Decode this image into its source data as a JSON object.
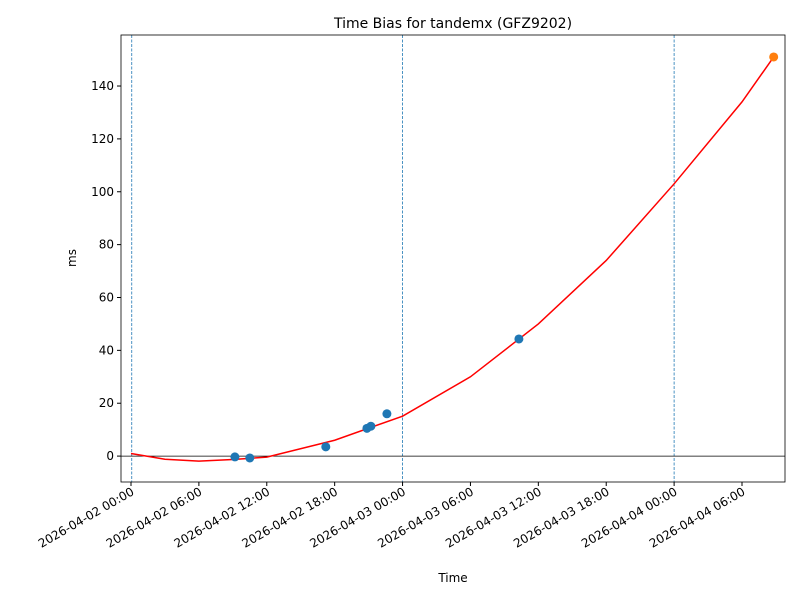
{
  "chart_data": {
    "type": "scatter",
    "title": "Time Bias for tandemx (GFZ9202)",
    "xlabel": "Time",
    "ylabel": "ms",
    "xlim": [
      "2026-04-01 23:07",
      "2026-04-04 09:48"
    ],
    "ylim": [
      -9.8,
      159.3
    ],
    "xticks": [
      "2026-04-02 00:00",
      "2026-04-02 06:00",
      "2026-04-02 12:00",
      "2026-04-02 18:00",
      "2026-04-03 00:00",
      "2026-04-03 06:00",
      "2026-04-03 12:00",
      "2026-04-03 18:00",
      "2026-04-04 00:00",
      "2026-04-04 06:00"
    ],
    "yticks": [
      0,
      20,
      40,
      60,
      80,
      100,
      120,
      140
    ],
    "hline": 0,
    "vlines": [
      "2026-04-02 00:04",
      "2026-04-03 00:00",
      "2026-04-04 00:00"
    ],
    "vline_color": "#1f77b4",
    "series": [
      {
        "kind": "line",
        "color": "#ff0000",
        "x": [
          "2026-04-02 00:00",
          "2026-04-02 03:00",
          "2026-04-02 06:00",
          "2026-04-02 09:00",
          "2026-04-02 12:00",
          "2026-04-02 18:00",
          "2026-04-03 00:00",
          "2026-04-03 06:00",
          "2026-04-03 12:00",
          "2026-04-03 18:00",
          "2026-04-04 00:00",
          "2026-04-04 06:00",
          "2026-04-04 08:48"
        ],
        "values": [
          1.0,
          -1.2,
          -1.9,
          -1.3,
          -0.4,
          6.0,
          15.1,
          30,
          50,
          74,
          103,
          134,
          151
        ]
      },
      {
        "kind": "points",
        "color": "#1f77b4",
        "x": [
          "2026-04-02 09:11",
          "2026-04-02 10:30",
          "2026-04-02 17:13",
          "2026-04-02 20:51",
          "2026-04-02 21:12",
          "2026-04-02 22:37",
          "2026-04-03 10:17"
        ],
        "values": [
          -0.3,
          -0.7,
          3.5,
          10.5,
          11.3,
          16,
          44.3
        ]
      },
      {
        "kind": "points",
        "color": "#ff7f0e",
        "x": [
          "2026-04-04 08:48"
        ],
        "values": [
          151
        ]
      }
    ]
  }
}
